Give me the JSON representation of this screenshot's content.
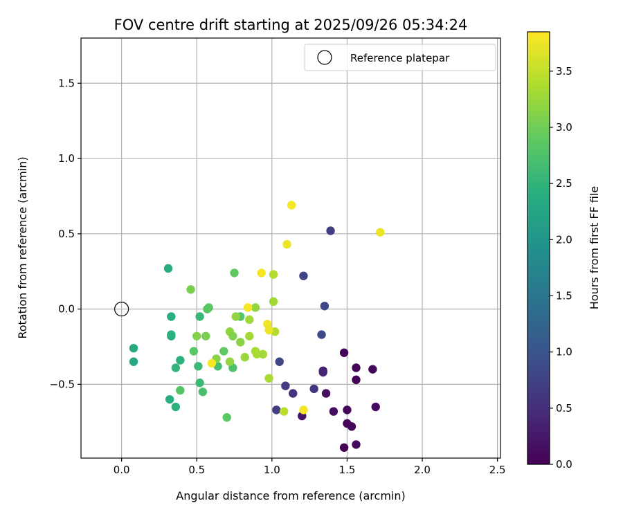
{
  "chart_data": {
    "type": "scatter",
    "title": "FOV centre drift starting at 2025/09/26 05:34:24",
    "xlabel": "Angular distance from reference (arcmin)",
    "ylabel": "Rotation from reference (arcmin)",
    "xlim": [
      -0.27,
      2.52
    ],
    "ylim": [
      -0.99,
      1.8
    ],
    "xticks": [
      0.0,
      0.5,
      1.0,
      1.5,
      2.0,
      2.5
    ],
    "xtick_labels": [
      "0.0",
      "0.5",
      "1.0",
      "1.5",
      "2.0",
      "2.5"
    ],
    "yticks": [
      -0.5,
      0.0,
      0.5,
      1.0,
      1.5
    ],
    "ytick_labels": [
      "−0.5",
      "0.0",
      "0.5",
      "1.0",
      "1.5"
    ],
    "grid": true,
    "legend": {
      "location": "upper-right",
      "entries": [
        {
          "label": "Reference platepar",
          "marker": "open-circle",
          "x": 0.0,
          "y": 0.0
        }
      ]
    },
    "colorbar": {
      "label": "Hours from first FF file",
      "range": [
        0.0,
        3.85
      ],
      "ticks": [
        0.0,
        0.5,
        1.0,
        1.5,
        2.0,
        2.5,
        3.0,
        3.5
      ],
      "tick_labels": [
        "0.0",
        "0.5",
        "1.0",
        "1.5",
        "2.0",
        "2.5",
        "3.0",
        "3.5"
      ],
      "colormap": "viridis"
    },
    "points": [
      {
        "x": 1.48,
        "y": -0.29,
        "h": 0.05
      },
      {
        "x": 1.56,
        "y": -0.39,
        "h": 0.02
      },
      {
        "x": 1.56,
        "y": -0.47,
        "h": 0.03
      },
      {
        "x": 1.67,
        "y": -0.4,
        "h": 0.08
      },
      {
        "x": 1.69,
        "y": -0.65,
        "h": 0.1
      },
      {
        "x": 1.5,
        "y": -0.67,
        "h": 0.05
      },
      {
        "x": 1.41,
        "y": -0.68,
        "h": 0.12
      },
      {
        "x": 1.36,
        "y": -0.56,
        "h": 0.15
      },
      {
        "x": 1.2,
        "y": -0.71,
        "h": 0.2
      },
      {
        "x": 1.5,
        "y": -0.76,
        "h": 0.05
      },
      {
        "x": 1.53,
        "y": -0.78,
        "h": 0.08
      },
      {
        "x": 1.48,
        "y": -0.92,
        "h": 0.03
      },
      {
        "x": 1.56,
        "y": -0.9,
        "h": 0.1
      },
      {
        "x": 1.34,
        "y": -0.41,
        "h": 0.35
      },
      {
        "x": 1.34,
        "y": -0.42,
        "h": 0.4
      },
      {
        "x": 1.28,
        "y": -0.53,
        "h": 0.6
      },
      {
        "x": 1.14,
        "y": -0.56,
        "h": 0.55
      },
      {
        "x": 1.09,
        "y": -0.51,
        "h": 0.65
      },
      {
        "x": 1.05,
        "y": -0.35,
        "h": 0.8
      },
      {
        "x": 1.03,
        "y": -0.67,
        "h": 0.7
      },
      {
        "x": 1.33,
        "y": -0.17,
        "h": 0.85
      },
      {
        "x": 1.35,
        "y": 0.02,
        "h": 0.8
      },
      {
        "x": 1.21,
        "y": 0.22,
        "h": 0.75
      },
      {
        "x": 1.39,
        "y": 0.52,
        "h": 0.7
      },
      {
        "x": 0.31,
        "y": 0.27,
        "h": 2.35
      },
      {
        "x": 0.33,
        "y": -0.05,
        "h": 2.4
      },
      {
        "x": 0.33,
        "y": -0.17,
        "h": 2.45
      },
      {
        "x": 0.33,
        "y": -0.18,
        "h": 2.42
      },
      {
        "x": 0.08,
        "y": -0.26,
        "h": 2.35
      },
      {
        "x": 0.08,
        "y": -0.35,
        "h": 2.3
      },
      {
        "x": 0.36,
        "y": -0.39,
        "h": 2.5
      },
      {
        "x": 0.39,
        "y": -0.34,
        "h": 2.45
      },
      {
        "x": 0.32,
        "y": -0.6,
        "h": 2.4
      },
      {
        "x": 0.36,
        "y": -0.65,
        "h": 2.45
      },
      {
        "x": 0.52,
        "y": -0.05,
        "h": 2.55
      },
      {
        "x": 0.51,
        "y": -0.38,
        "h": 2.6
      },
      {
        "x": 0.52,
        "y": -0.49,
        "h": 2.6
      },
      {
        "x": 0.54,
        "y": -0.55,
        "h": 2.7
      },
      {
        "x": 0.39,
        "y": -0.54,
        "h": 2.8
      },
      {
        "x": 0.48,
        "y": -0.28,
        "h": 2.85
      },
      {
        "x": 0.57,
        "y": 0.0,
        "h": 2.8
      },
      {
        "x": 0.58,
        "y": 0.01,
        "h": 2.85
      },
      {
        "x": 0.64,
        "y": -0.38,
        "h": 2.7
      },
      {
        "x": 0.68,
        "y": -0.28,
        "h": 2.9
      },
      {
        "x": 0.74,
        "y": -0.39,
        "h": 2.75
      },
      {
        "x": 0.7,
        "y": -0.72,
        "h": 2.85
      },
      {
        "x": 0.79,
        "y": -0.05,
        "h": 2.8
      },
      {
        "x": 0.75,
        "y": 0.24,
        "h": 2.9
      },
      {
        "x": 0.46,
        "y": 0.13,
        "h": 3.05
      },
      {
        "x": 0.5,
        "y": -0.18,
        "h": 3.1
      },
      {
        "x": 0.56,
        "y": -0.18,
        "h": 3.05
      },
      {
        "x": 0.63,
        "y": -0.33,
        "h": 3.15
      },
      {
        "x": 0.72,
        "y": -0.15,
        "h": 3.2
      },
      {
        "x": 0.74,
        "y": -0.18,
        "h": 3.1
      },
      {
        "x": 0.76,
        "y": -0.05,
        "h": 3.2
      },
      {
        "x": 0.79,
        "y": -0.22,
        "h": 3.15
      },
      {
        "x": 0.72,
        "y": -0.35,
        "h": 3.2
      },
      {
        "x": 0.82,
        "y": -0.32,
        "h": 3.25
      },
      {
        "x": 0.85,
        "y": -0.07,
        "h": 3.3
      },
      {
        "x": 0.85,
        "y": -0.18,
        "h": 3.3
      },
      {
        "x": 0.89,
        "y": 0.01,
        "h": 3.2
      },
      {
        "x": 0.89,
        "y": -0.28,
        "h": 3.35
      },
      {
        "x": 0.9,
        "y": -0.3,
        "h": 3.35
      },
      {
        "x": 0.94,
        "y": -0.3,
        "h": 3.3
      },
      {
        "x": 0.98,
        "y": -0.46,
        "h": 3.35
      },
      {
        "x": 1.01,
        "y": 0.05,
        "h": 3.3
      },
      {
        "x": 1.01,
        "y": 0.23,
        "h": 3.4
      },
      {
        "x": 1.02,
        "y": -0.15,
        "h": 3.4
      },
      {
        "x": 1.08,
        "y": -0.68,
        "h": 3.45
      },
      {
        "x": 0.93,
        "y": 0.24,
        "h": 3.8
      },
      {
        "x": 0.84,
        "y": 0.01,
        "h": 3.8
      },
      {
        "x": 0.97,
        "y": -0.1,
        "h": 3.78
      },
      {
        "x": 0.98,
        "y": -0.14,
        "h": 3.75
      },
      {
        "x": 0.6,
        "y": -0.36,
        "h": 3.8
      },
      {
        "x": 1.1,
        "y": 0.43,
        "h": 3.75
      },
      {
        "x": 1.13,
        "y": 0.69,
        "h": 3.8
      },
      {
        "x": 1.72,
        "y": 0.51,
        "h": 3.75
      },
      {
        "x": 1.21,
        "y": -0.67,
        "h": 3.8
      }
    ]
  }
}
